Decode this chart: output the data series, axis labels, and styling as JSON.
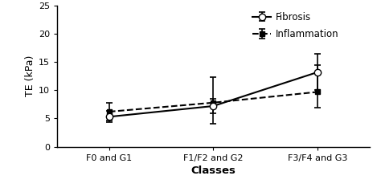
{
  "categories": [
    "F0 and G1",
    "F1/F2 and G2",
    "F3/F4 and G3"
  ],
  "fibrosis_values": [
    5.3,
    7.2,
    13.2
  ],
  "fibrosis_err_low": [
    1.0,
    1.3,
    3.2
  ],
  "fibrosis_err_high": [
    1.0,
    1.3,
    3.2
  ],
  "inflammation_values": [
    6.2,
    7.8,
    9.7
  ],
  "inflammation_err_low": [
    1.5,
    3.8,
    2.8
  ],
  "inflammation_err_high": [
    1.5,
    4.5,
    4.8
  ],
  "ylabel": "TE (kPa)",
  "xlabel": "Classes",
  "ylim": [
    0,
    25
  ],
  "yticks": [
    0,
    5,
    10,
    15,
    20,
    25
  ],
  "legend_fibrosis": "Fibrosis",
  "legend_inflammation": "Inflammation",
  "line_color": "black",
  "bg_color": "white"
}
